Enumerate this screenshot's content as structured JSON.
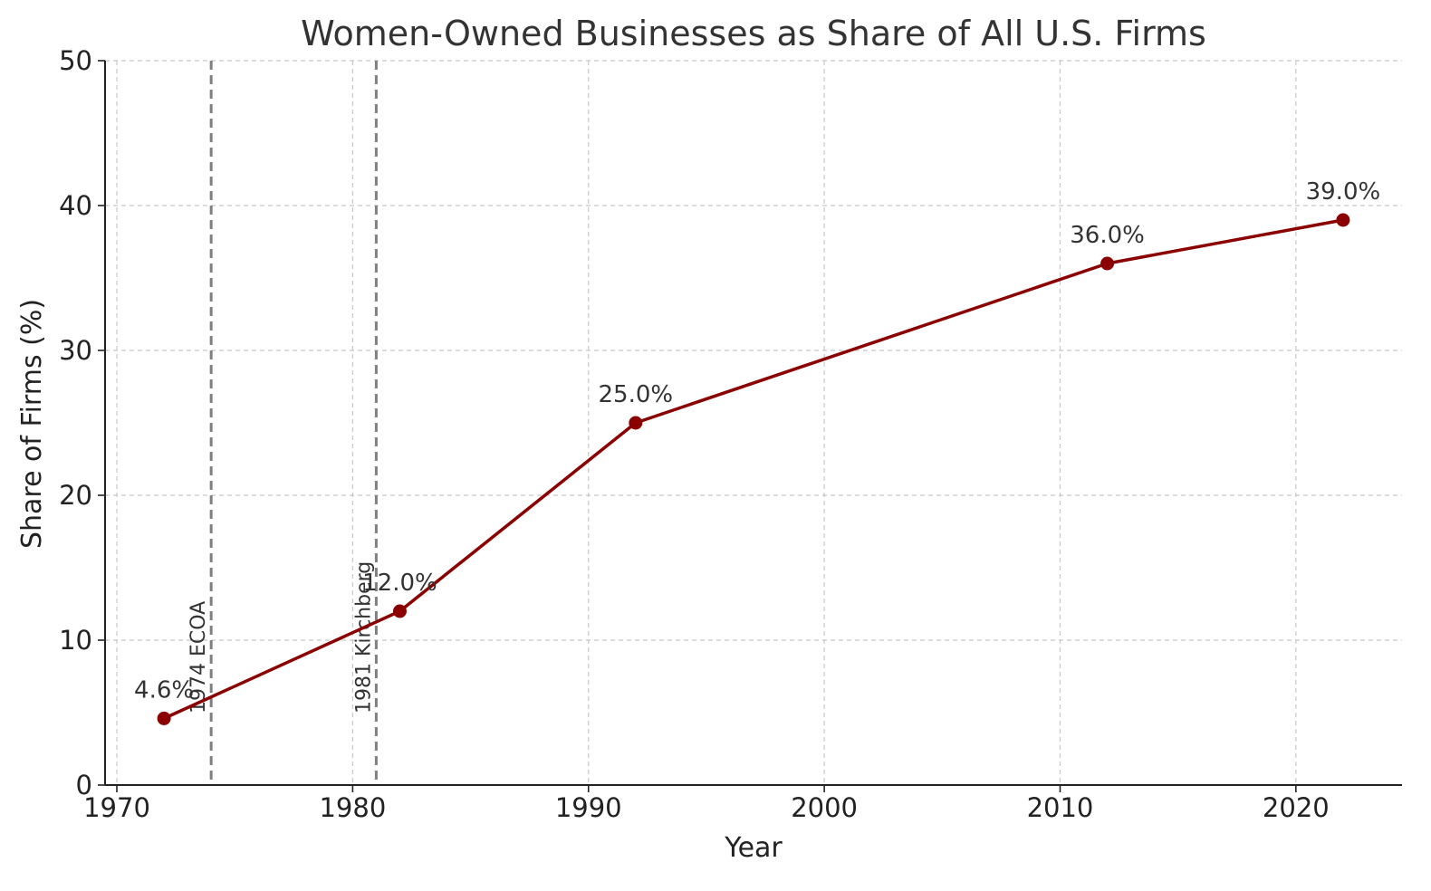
{
  "chart_data": {
    "type": "line",
    "title": "Women-Owned Businesses as Share of All U.S. Firms",
    "xlabel": "Year",
    "ylabel": "Share of Firms (%)",
    "xlim": [
      1969.5,
      2024.5
    ],
    "ylim": [
      0,
      50
    ],
    "xticks": [
      1970,
      1980,
      1990,
      2000,
      2010,
      2020
    ],
    "yticks": [
      0,
      10,
      20,
      30,
      40,
      50
    ],
    "grid": true,
    "series": [
      {
        "name": "Share of Firms",
        "color": "#8b0000",
        "x": [
          1972,
          1982,
          1992,
          2012,
          2022
        ],
        "y": [
          4.6,
          12.0,
          25.0,
          36.0,
          39.0
        ],
        "labels": [
          "4.6%",
          "12.0%",
          "25.0%",
          "36.0%",
          "39.0%"
        ]
      }
    ],
    "annotations": [
      {
        "x": 1974,
        "label": "1974 ECOA",
        "color": "#808080"
      },
      {
        "x": 1981,
        "label": "1981 Kirchberg",
        "color": "#808080"
      }
    ]
  }
}
